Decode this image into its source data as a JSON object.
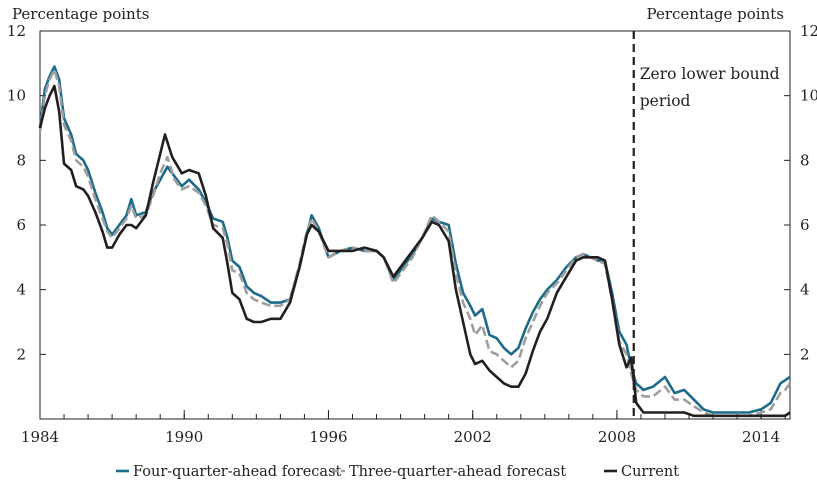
{
  "chart_data": {
    "type": "line",
    "unit_label_left": "Percentage points",
    "unit_label_right": "Percentage points",
    "xlim": [
      1984,
      2015.2
    ],
    "ylim": [
      0,
      12
    ],
    "x_ticks": [
      "1984",
      "1990",
      "1996",
      "2002",
      "2008",
      "2014"
    ],
    "y_ticks": [
      "2",
      "4",
      "6",
      "8",
      "10",
      "12"
    ],
    "y_ticks_right": [
      "2",
      "4",
      "6",
      "8",
      "10",
      "12"
    ],
    "grid": false,
    "legend_position": "bottom",
    "annotation": {
      "lines": [
        "Zero lower bound",
        "period"
      ],
      "x": 2008.7
    },
    "series": [
      {
        "name": "Four-quarter-ahead forecast",
        "color": "#1d6b8a",
        "dash": "solid",
        "points": [
          [
            1984.0,
            9.0
          ],
          [
            1984.2,
            10.2
          ],
          [
            1984.4,
            10.6
          ],
          [
            1984.6,
            10.9
          ],
          [
            1984.8,
            10.5
          ],
          [
            1985.0,
            9.3
          ],
          [
            1985.3,
            8.8
          ],
          [
            1985.5,
            8.2
          ],
          [
            1985.8,
            8.0
          ],
          [
            1986.0,
            7.7
          ],
          [
            1986.3,
            7.0
          ],
          [
            1986.6,
            6.4
          ],
          [
            1986.8,
            5.9
          ],
          [
            1987.0,
            5.7
          ],
          [
            1987.3,
            6.0
          ],
          [
            1987.6,
            6.3
          ],
          [
            1987.8,
            6.8
          ],
          [
            1988.0,
            6.3
          ],
          [
            1988.4,
            6.4
          ],
          [
            1988.7,
            7.0
          ],
          [
            1989.0,
            7.4
          ],
          [
            1989.3,
            7.8
          ],
          [
            1989.6,
            7.5
          ],
          [
            1989.9,
            7.2
          ],
          [
            1990.2,
            7.4
          ],
          [
            1990.6,
            7.1
          ],
          [
            1990.9,
            6.7
          ],
          [
            1991.2,
            6.2
          ],
          [
            1991.6,
            6.1
          ],
          [
            1991.8,
            5.6
          ],
          [
            1992.0,
            4.9
          ],
          [
            1992.3,
            4.7
          ],
          [
            1992.6,
            4.1
          ],
          [
            1992.9,
            3.9
          ],
          [
            1993.2,
            3.8
          ],
          [
            1993.6,
            3.6
          ],
          [
            1994.0,
            3.6
          ],
          [
            1994.4,
            3.7
          ],
          [
            1994.8,
            4.7
          ],
          [
            1995.1,
            5.7
          ],
          [
            1995.3,
            6.3
          ],
          [
            1995.6,
            5.9
          ],
          [
            1996.0,
            5.0
          ],
          [
            1996.5,
            5.2
          ],
          [
            1997.0,
            5.3
          ],
          [
            1997.5,
            5.2
          ],
          [
            1998.0,
            5.2
          ],
          [
            1998.3,
            5.0
          ],
          [
            1998.7,
            4.3
          ],
          [
            1999.0,
            4.6
          ],
          [
            1999.5,
            5.1
          ],
          [
            1999.9,
            5.6
          ],
          [
            2000.3,
            6.2
          ],
          [
            2000.6,
            6.1
          ],
          [
            2001.0,
            6.0
          ],
          [
            2001.3,
            4.8
          ],
          [
            2001.6,
            3.9
          ],
          [
            2001.9,
            3.5
          ],
          [
            2002.1,
            3.2
          ],
          [
            2002.4,
            3.4
          ],
          [
            2002.7,
            2.6
          ],
          [
            2003.0,
            2.5
          ],
          [
            2003.3,
            2.2
          ],
          [
            2003.6,
            2.0
          ],
          [
            2003.9,
            2.2
          ],
          [
            2004.2,
            2.8
          ],
          [
            2004.5,
            3.3
          ],
          [
            2004.8,
            3.7
          ],
          [
            2005.1,
            4.0
          ],
          [
            2005.5,
            4.3
          ],
          [
            2005.9,
            4.7
          ],
          [
            2006.3,
            5.0
          ],
          [
            2006.6,
            5.1
          ],
          [
            2006.9,
            5.0
          ],
          [
            2007.2,
            4.9
          ],
          [
            2007.5,
            4.9
          ],
          [
            2007.8,
            3.9
          ],
          [
            2008.1,
            2.7
          ],
          [
            2008.4,
            2.3
          ],
          [
            2008.6,
            1.6
          ],
          [
            2008.8,
            1.1
          ],
          [
            2009.1,
            0.9
          ],
          [
            2009.5,
            1.0
          ],
          [
            2010.0,
            1.3
          ],
          [
            2010.4,
            0.8
          ],
          [
            2010.8,
            0.9
          ],
          [
            2011.2,
            0.6
          ],
          [
            2011.6,
            0.3
          ],
          [
            2012.0,
            0.2
          ],
          [
            2012.5,
            0.2
          ],
          [
            2013.0,
            0.2
          ],
          [
            2013.5,
            0.2
          ],
          [
            2014.0,
            0.3
          ],
          [
            2014.4,
            0.5
          ],
          [
            2014.8,
            1.1
          ],
          [
            2015.0,
            1.2
          ],
          [
            2015.2,
            1.3
          ]
        ]
      },
      {
        "name": "Three-quarter-ahead forecast",
        "color": "#9e9e9e",
        "dash": "dashed",
        "points": [
          [
            1984.0,
            8.9
          ],
          [
            1984.2,
            10.0
          ],
          [
            1984.4,
            10.5
          ],
          [
            1984.6,
            10.8
          ],
          [
            1984.8,
            10.3
          ],
          [
            1985.0,
            9.1
          ],
          [
            1985.3,
            8.6
          ],
          [
            1985.5,
            8.0
          ],
          [
            1985.8,
            7.8
          ],
          [
            1986.0,
            7.5
          ],
          [
            1986.3,
            6.8
          ],
          [
            1986.6,
            6.2
          ],
          [
            1986.8,
            5.8
          ],
          [
            1987.0,
            5.6
          ],
          [
            1987.3,
            5.9
          ],
          [
            1987.6,
            6.2
          ],
          [
            1987.8,
            6.6
          ],
          [
            1988.0,
            6.2
          ],
          [
            1988.4,
            6.3
          ],
          [
            1988.7,
            6.9
          ],
          [
            1989.0,
            7.6
          ],
          [
            1989.3,
            8.1
          ],
          [
            1989.6,
            7.4
          ],
          [
            1989.9,
            7.1
          ],
          [
            1990.2,
            7.2
          ],
          [
            1990.6,
            7.0
          ],
          [
            1990.9,
            6.6
          ],
          [
            1991.2,
            6.0
          ],
          [
            1991.6,
            5.9
          ],
          [
            1991.8,
            5.4
          ],
          [
            1992.0,
            4.6
          ],
          [
            1992.3,
            4.5
          ],
          [
            1992.6,
            3.9
          ],
          [
            1992.9,
            3.7
          ],
          [
            1993.2,
            3.6
          ],
          [
            1993.6,
            3.5
          ],
          [
            1994.0,
            3.5
          ],
          [
            1994.4,
            3.7
          ],
          [
            1994.8,
            4.8
          ],
          [
            1995.1,
            5.8
          ],
          [
            1995.3,
            6.2
          ],
          [
            1995.6,
            5.8
          ],
          [
            1996.0,
            5.0
          ],
          [
            1996.5,
            5.2
          ],
          [
            1997.0,
            5.3
          ],
          [
            1997.5,
            5.2
          ],
          [
            1998.0,
            5.2
          ],
          [
            1998.3,
            5.0
          ],
          [
            1998.7,
            4.2
          ],
          [
            1999.0,
            4.5
          ],
          [
            1999.5,
            5.0
          ],
          [
            1999.9,
            5.6
          ],
          [
            2000.3,
            6.3
          ],
          [
            2000.6,
            6.1
          ],
          [
            2001.0,
            5.8
          ],
          [
            2001.3,
            4.5
          ],
          [
            2001.6,
            3.6
          ],
          [
            2001.9,
            3.1
          ],
          [
            2002.1,
            2.6
          ],
          [
            2002.4,
            2.9
          ],
          [
            2002.7,
            2.1
          ],
          [
            2003.0,
            2.0
          ],
          [
            2003.3,
            1.8
          ],
          [
            2003.6,
            1.6
          ],
          [
            2003.9,
            1.8
          ],
          [
            2004.2,
            2.5
          ],
          [
            2004.5,
            3.0
          ],
          [
            2004.8,
            3.5
          ],
          [
            2005.1,
            3.9
          ],
          [
            2005.5,
            4.2
          ],
          [
            2005.9,
            4.6
          ],
          [
            2006.3,
            5.0
          ],
          [
            2006.6,
            5.1
          ],
          [
            2006.9,
            5.0
          ],
          [
            2007.2,
            4.9
          ],
          [
            2007.5,
            4.8
          ],
          [
            2007.8,
            3.7
          ],
          [
            2008.1,
            2.4
          ],
          [
            2008.4,
            2.0
          ],
          [
            2008.6,
            1.4
          ],
          [
            2008.8,
            0.9
          ],
          [
            2009.1,
            0.7
          ],
          [
            2009.5,
            0.7
          ],
          [
            2010.0,
            1.0
          ],
          [
            2010.4,
            0.6
          ],
          [
            2010.8,
            0.6
          ],
          [
            2011.2,
            0.4
          ],
          [
            2011.6,
            0.2
          ],
          [
            2012.0,
            0.1
          ],
          [
            2012.5,
            0.1
          ],
          [
            2013.0,
            0.1
          ],
          [
            2013.5,
            0.1
          ],
          [
            2014.0,
            0.2
          ],
          [
            2014.4,
            0.3
          ],
          [
            2014.8,
            0.8
          ],
          [
            2015.0,
            0.9
          ],
          [
            2015.2,
            1.1
          ]
        ]
      },
      {
        "name": "Current",
        "color": "#231f20",
        "dash": "solid",
        "points": [
          [
            1984.0,
            9.0
          ],
          [
            1984.2,
            9.6
          ],
          [
            1984.4,
            10.0
          ],
          [
            1984.6,
            10.3
          ],
          [
            1984.8,
            9.5
          ],
          [
            1985.0,
            7.9
          ],
          [
            1985.3,
            7.7
          ],
          [
            1985.5,
            7.2
          ],
          [
            1985.8,
            7.1
          ],
          [
            1986.0,
            6.9
          ],
          [
            1986.3,
            6.4
          ],
          [
            1986.6,
            5.8
          ],
          [
            1986.8,
            5.3
          ],
          [
            1987.0,
            5.3
          ],
          [
            1987.3,
            5.7
          ],
          [
            1987.6,
            6.0
          ],
          [
            1987.8,
            6.0
          ],
          [
            1988.0,
            5.9
          ],
          [
            1988.4,
            6.3
          ],
          [
            1988.7,
            7.3
          ],
          [
            1989.0,
            8.2
          ],
          [
            1989.2,
            8.8
          ],
          [
            1989.5,
            8.1
          ],
          [
            1989.9,
            7.6
          ],
          [
            1990.2,
            7.7
          ],
          [
            1990.6,
            7.6
          ],
          [
            1990.9,
            6.9
          ],
          [
            1991.2,
            5.9
          ],
          [
            1991.6,
            5.6
          ],
          [
            1991.8,
            4.8
          ],
          [
            1992.0,
            3.9
          ],
          [
            1992.3,
            3.7
          ],
          [
            1992.6,
            3.1
          ],
          [
            1992.9,
            3.0
          ],
          [
            1993.2,
            3.0
          ],
          [
            1993.6,
            3.1
          ],
          [
            1994.0,
            3.1
          ],
          [
            1994.4,
            3.6
          ],
          [
            1994.8,
            4.7
          ],
          [
            1995.1,
            5.7
          ],
          [
            1995.3,
            6.0
          ],
          [
            1995.6,
            5.8
          ],
          [
            1996.0,
            5.2
          ],
          [
            1996.5,
            5.2
          ],
          [
            1997.0,
            5.2
          ],
          [
            1997.5,
            5.3
          ],
          [
            1998.0,
            5.2
          ],
          [
            1998.3,
            5.0
          ],
          [
            1998.7,
            4.4
          ],
          [
            1999.0,
            4.7
          ],
          [
            1999.5,
            5.2
          ],
          [
            1999.9,
            5.6
          ],
          [
            2000.3,
            6.1
          ],
          [
            2000.6,
            6.0
          ],
          [
            2001.0,
            5.5
          ],
          [
            2001.3,
            4.0
          ],
          [
            2001.6,
            3.0
          ],
          [
            2001.9,
            2.0
          ],
          [
            2002.1,
            1.7
          ],
          [
            2002.4,
            1.8
          ],
          [
            2002.7,
            1.5
          ],
          [
            2003.0,
            1.3
          ],
          [
            2003.3,
            1.1
          ],
          [
            2003.6,
            1.0
          ],
          [
            2003.9,
            1.0
          ],
          [
            2004.2,
            1.4
          ],
          [
            2004.5,
            2.1
          ],
          [
            2004.8,
            2.7
          ],
          [
            2005.1,
            3.1
          ],
          [
            2005.5,
            3.9
          ],
          [
            2005.9,
            4.4
          ],
          [
            2006.3,
            4.9
          ],
          [
            2006.6,
            5.0
          ],
          [
            2006.9,
            5.0
          ],
          [
            2007.2,
            5.0
          ],
          [
            2007.5,
            4.9
          ],
          [
            2007.8,
            3.7
          ],
          [
            2008.1,
            2.3
          ],
          [
            2008.4,
            1.6
          ],
          [
            2008.6,
            1.9
          ],
          [
            2008.8,
            0.5
          ],
          [
            2009.1,
            0.2
          ],
          [
            2009.5,
            0.2
          ],
          [
            2010.0,
            0.2
          ],
          [
            2010.4,
            0.2
          ],
          [
            2010.8,
            0.2
          ],
          [
            2011.2,
            0.1
          ],
          [
            2011.6,
            0.1
          ],
          [
            2012.0,
            0.1
          ],
          [
            2012.5,
            0.1
          ],
          [
            2013.0,
            0.1
          ],
          [
            2013.5,
            0.1
          ],
          [
            2014.0,
            0.1
          ],
          [
            2014.4,
            0.1
          ],
          [
            2014.8,
            0.1
          ],
          [
            2015.0,
            0.1
          ],
          [
            2015.2,
            0.2
          ]
        ]
      }
    ]
  }
}
